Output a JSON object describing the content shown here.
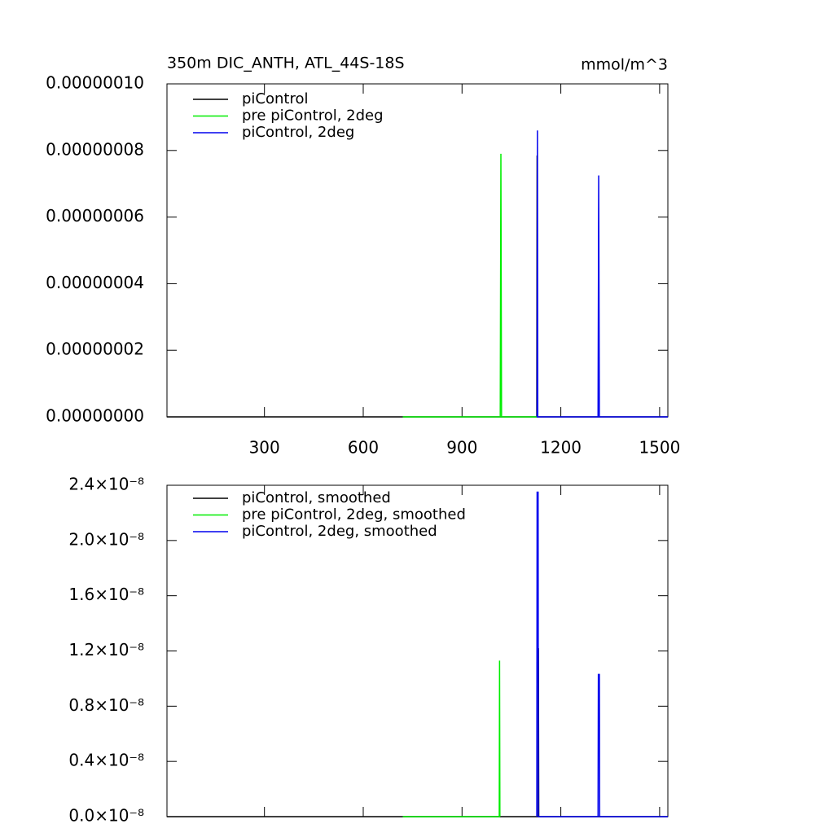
{
  "chart_data": [
    {
      "type": "line",
      "title": "350m DIC_ANTH, ATL_44S-18S",
      "units": "mmol/m^3",
      "x": [
        4,
        720,
        1016,
        1018,
        1020,
        1127,
        1128,
        1129,
        1130,
        1131,
        1313,
        1315,
        1317,
        1525
      ],
      "series": [
        {
          "name": "piControl",
          "color": "#000000",
          "values": [
            0,
            0,
            0,
            0,
            0,
            0,
            7.85e-08,
            0,
            0,
            0,
            0,
            0,
            0,
            0
          ]
        },
        {
          "name": "pre piControl, 2deg",
          "color": "#00ee00",
          "values": [
            null,
            0,
            0,
            7.9e-08,
            0,
            0,
            null,
            null,
            null,
            null,
            null,
            null,
            null,
            null
          ]
        },
        {
          "name": "piControl, 2deg",
          "color": "#0000ee",
          "values": [
            null,
            null,
            null,
            null,
            null,
            0,
            0,
            8.6e-08,
            0,
            0,
            0,
            7.25e-08,
            0,
            0
          ]
        }
      ],
      "xlim": [
        4,
        1525
      ],
      "xticks": [
        300,
        600,
        900,
        1200,
        1500
      ],
      "ylim": [
        0,
        1e-07
      ],
      "yticks": [
        {
          "value": 0,
          "label": "0.00000000"
        },
        {
          "value": 2e-08,
          "label": "0.00000002"
        },
        {
          "value": 4e-08,
          "label": "0.00000004"
        },
        {
          "value": 6e-08,
          "label": "0.00000006"
        },
        {
          "value": 8e-08,
          "label": "0.00000008"
        },
        {
          "value": 1e-07,
          "label": "0.00000010"
        }
      ],
      "legend": "upper left"
    },
    {
      "type": "line",
      "x": [
        4,
        720,
        1013,
        1014,
        1015,
        1127,
        1128,
        1131,
        1132,
        1133,
        1313,
        1314,
        1317,
        1318,
        1525
      ],
      "series": [
        {
          "name": "piControl, smoothed",
          "color": "#000000",
          "values": [
            0,
            0,
            0,
            0,
            0,
            0,
            0,
            0,
            1.22e-08,
            0,
            0,
            0,
            0,
            0,
            0
          ]
        },
        {
          "name": "pre piControl, 2deg, smoothed",
          "color": "#00ee00",
          "values": [
            null,
            0,
            0,
            1.13e-08,
            0,
            null,
            null,
            null,
            null,
            null,
            null,
            null,
            null,
            null,
            null
          ]
        },
        {
          "name": "piControl, 2deg, smoothed",
          "color": "#0000ee",
          "values": [
            null,
            null,
            null,
            null,
            null,
            0,
            2.35e-08,
            2.35e-08,
            0,
            0,
            0,
            1.03e-08,
            1.03e-08,
            0,
            0
          ]
        }
      ],
      "xlim": [
        4,
        1525
      ],
      "xticks": [
        300,
        600,
        900,
        1200,
        1500
      ],
      "ylim": [
        0,
        2.4e-08
      ],
      "yticks": [
        {
          "value": 0,
          "label": "0.0×10⁻⁸"
        },
        {
          "value": 4e-09,
          "label": "0.4×10⁻⁸"
        },
        {
          "value": 8e-09,
          "label": "0.8×10⁻⁸"
        },
        {
          "value": 1.2e-08,
          "label": "1.2×10⁻⁸"
        },
        {
          "value": 1.6e-08,
          "label": "1.6×10⁻⁸"
        },
        {
          "value": 2e-08,
          "label": "2.0×10⁻⁸"
        },
        {
          "value": 2.4e-08,
          "label": "2.4×10⁻⁸"
        }
      ],
      "legend": "upper left"
    }
  ]
}
